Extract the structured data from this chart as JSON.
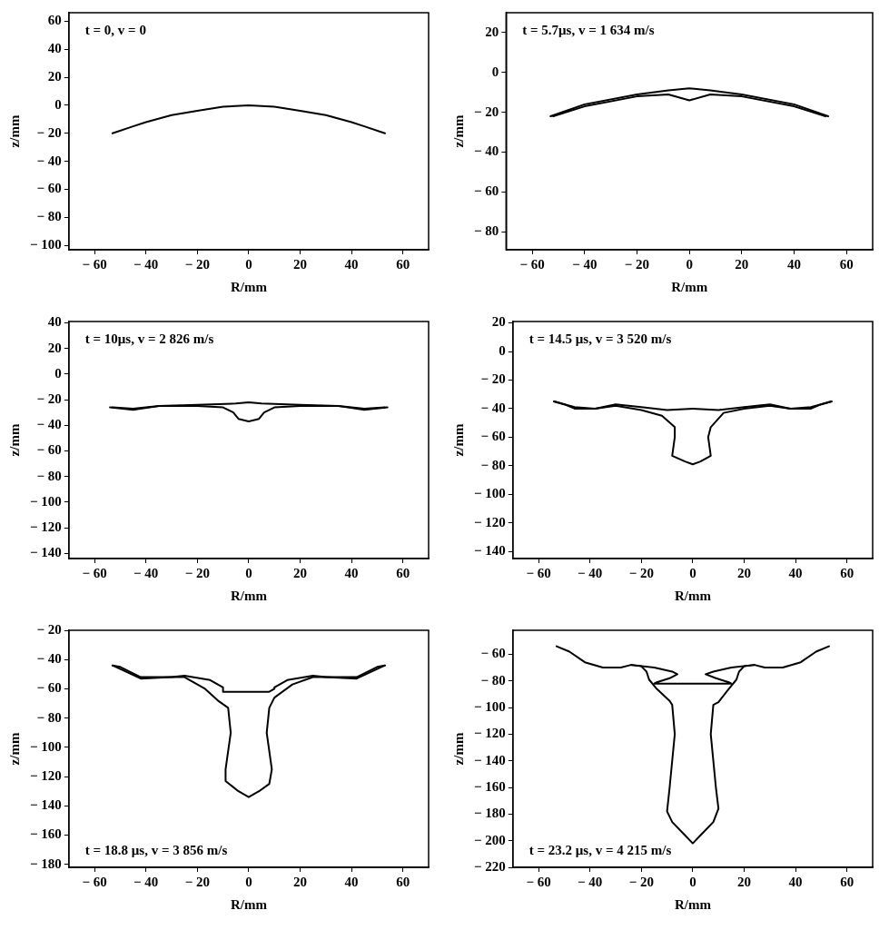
{
  "chart_data": [
    {
      "type": "line",
      "xlabel": "R/mm",
      "ylabel": "z/mm",
      "annotations": [
        "t = 0, v = 0"
      ],
      "xlim": [
        -70,
        70
      ],
      "ylim": [
        -103,
        66
      ],
      "xticks": [
        -60,
        -40,
        -20,
        0,
        20,
        40,
        60
      ],
      "yticks": [
        60,
        40,
        20,
        0,
        -20,
        -40,
        -60,
        -80,
        -100
      ],
      "series": [
        {
          "color": "#000000",
          "x": [
            -53,
            -45,
            -40,
            -30,
            -20,
            -10,
            0,
            10,
            20,
            30,
            40,
            45,
            53
          ],
          "values": [
            -20,
            -15,
            -12,
            -7,
            -4,
            -1,
            0,
            -1,
            -4,
            -7,
            -12,
            -15,
            -20
          ]
        }
      ]
    },
    {
      "type": "line",
      "xlabel": "R/mm",
      "ylabel": "z/mm",
      "annotations": [
        "t = 5.7μs, v = 1 634 m/s"
      ],
      "xlim": [
        -70,
        70
      ],
      "ylim": [
        -89,
        30
      ],
      "xticks": [
        -60,
        -40,
        -20,
        0,
        20,
        40,
        60
      ],
      "yticks": [
        20,
        0,
        -20,
        -40,
        -60,
        -80
      ],
      "series": [
        {
          "color": "#000000",
          "x": [
            -53,
            -40,
            -20,
            -8,
            0,
            8,
            20,
            40,
            53
          ],
          "values": [
            -22,
            -16,
            -11,
            -9,
            -8,
            -9,
            -11,
            -16,
            -22
          ]
        },
        {
          "color": "#000000",
          "x": [
            52,
            40,
            20,
            8,
            0,
            -8,
            -20,
            -40,
            -52
          ],
          "values": [
            -22,
            -17,
            -12,
            -11,
            -14,
            -11,
            -12,
            -17,
            -22
          ]
        }
      ]
    },
    {
      "type": "line",
      "xlabel": "R/mm",
      "ylabel": "z/mm",
      "annotations": [
        "t = 10μs, v = 2 826 m/s"
      ],
      "xlim": [
        -70,
        70
      ],
      "ylim": [
        -144,
        41
      ],
      "xticks": [
        -60,
        -40,
        -20,
        0,
        20,
        40,
        60
      ],
      "yticks": [
        40,
        20,
        0,
        -20,
        -40,
        -60,
        -80,
        -100,
        -120,
        -140
      ],
      "series": [
        {
          "color": "#000000",
          "x": [
            -54,
            -45,
            -35,
            -20,
            -5,
            0,
            5,
            20,
            35,
            45,
            54
          ],
          "values": [
            -26,
            -28,
            -25,
            -24,
            -23,
            -22,
            -23,
            -24,
            -25,
            -28,
            -26
          ]
        },
        {
          "color": "#000000",
          "x": [
            53,
            45,
            35,
            20,
            10,
            6,
            4,
            0,
            -4,
            -6,
            -10,
            -20,
            -35,
            -45,
            -53
          ],
          "values": [
            -26,
            -27,
            -25,
            -25,
            -26,
            -30,
            -35,
            -37,
            -35,
            -30,
            -26,
            -25,
            -25,
            -27,
            -26
          ]
        }
      ]
    },
    {
      "type": "line",
      "xlabel": "R/mm",
      "ylabel": "z/mm",
      "annotations": [
        "t = 14.5 μs, v = 3 520 m/s"
      ],
      "xlim": [
        -70,
        70
      ],
      "ylim": [
        -145,
        21
      ],
      "xticks": [
        -60,
        -40,
        -20,
        0,
        20,
        40,
        60
      ],
      "yticks": [
        20,
        0,
        -20,
        -40,
        -60,
        -80,
        -100,
        -120,
        -140
      ],
      "series": [
        {
          "color": "#000000",
          "x": [
            -54,
            -50,
            -46,
            -38,
            -30,
            -20,
            -10,
            0,
            10,
            20,
            30,
            38,
            46,
            50,
            54
          ],
          "values": [
            -35,
            -37,
            -40,
            -40,
            -37,
            -39,
            -41,
            -40,
            -41,
            -39,
            -37,
            -40,
            -40,
            -37,
            -35
          ]
        },
        {
          "color": "#000000",
          "x": [
            54,
            46,
            38,
            30,
            20,
            12,
            7,
            6,
            7,
            3,
            0,
            -3,
            -8,
            -7,
            -7,
            -12,
            -20,
            -30,
            -38,
            -46,
            -54
          ],
          "values": [
            -35,
            -39,
            -40,
            -38,
            -40,
            -43,
            -53,
            -60,
            -73,
            -77,
            -79,
            -77,
            -73,
            -60,
            -53,
            -45,
            -41,
            -38,
            -40,
            -39,
            -35
          ]
        }
      ]
    },
    {
      "type": "line",
      "xlabel": "R/mm",
      "ylabel": "z/mm",
      "annotations": [
        "t = 18.8 μs, v = 3 856 m/s"
      ],
      "xlim": [
        -70,
        70
      ],
      "ylim": [
        -182,
        -20
      ],
      "xticks": [
        -60,
        -40,
        -20,
        0,
        20,
        40,
        60
      ],
      "yticks": [
        -20,
        -40,
        -60,
        -80,
        -100,
        -120,
        -140,
        -160,
        -180
      ],
      "series": [
        {
          "color": "#000000",
          "x": [
            -53,
            -50,
            -42,
            -30,
            -25,
            -15,
            -10,
            -10,
            -8,
            0,
            8,
            10,
            10,
            15,
            25,
            30,
            42,
            50,
            53
          ],
          "values": [
            -44,
            -45,
            -52,
            -52,
            -51,
            -54,
            -59,
            -62,
            -62,
            -62,
            -62,
            -60,
            -59,
            -54,
            -51,
            -52,
            -52,
            -45,
            -44
          ]
        },
        {
          "color": "#000000",
          "x": [
            53,
            42,
            30,
            25,
            17,
            10,
            8,
            7,
            9,
            8,
            4,
            0,
            -4,
            -9,
            -9,
            -7,
            -8,
            -12,
            -17,
            -25,
            -30,
            -42,
            -53
          ],
          "values": [
            -44,
            -53,
            -52,
            -52,
            -57,
            -66,
            -73,
            -90,
            -115,
            -125,
            -130,
            -134,
            -130,
            -123,
            -115,
            -90,
            -73,
            -68,
            -60,
            -52,
            -52,
            -53,
            -44
          ]
        }
      ]
    },
    {
      "type": "line",
      "xlabel": "R/mm",
      "ylabel": "z/mm",
      "annotations": [
        "t = 23.2 μs, v = 4 215 m/s"
      ],
      "xlim": [
        -70,
        70
      ],
      "ylim": [
        -220,
        -42
      ],
      "xticks": [
        -60,
        -40,
        -20,
        0,
        20,
        40,
        60
      ],
      "yticks": [
        -60,
        -80,
        -100,
        -120,
        -140,
        -160,
        -180,
        -200,
        -220
      ],
      "series": [
        {
          "color": "#000000",
          "x": [
            -53,
            -48,
            -42,
            -35,
            -28,
            -24,
            -20,
            -18,
            -17,
            -14,
            -9,
            -8,
            -7,
            -9,
            -10,
            -8,
            -3,
            0,
            3,
            8,
            10,
            9,
            7,
            8,
            10,
            14,
            17,
            18,
            20,
            24,
            28,
            35,
            42,
            48,
            53
          ],
          "values": [
            -54,
            -58,
            -66,
            -70,
            -70,
            -68,
            -69,
            -73,
            -79,
            -86,
            -95,
            -98,
            -120,
            -160,
            -178,
            -186,
            -196,
            -202,
            -196,
            -186,
            -176,
            -160,
            -120,
            -98,
            -96,
            -86,
            -79,
            -73,
            -69,
            -68,
            -70,
            -70,
            -66,
            -58,
            -54
          ]
        },
        {
          "color": "#000000",
          "x": [
            -24,
            -15,
            -8,
            -6,
            -9,
            -14,
            -15,
            0,
            15,
            14,
            9,
            5,
            8,
            15,
            24
          ],
          "values": [
            -68,
            -70,
            -73,
            -75,
            -78,
            -81,
            -82,
            -82,
            -82,
            -81,
            -78,
            -75,
            -73,
            -70,
            -68
          ]
        }
      ]
    }
  ]
}
